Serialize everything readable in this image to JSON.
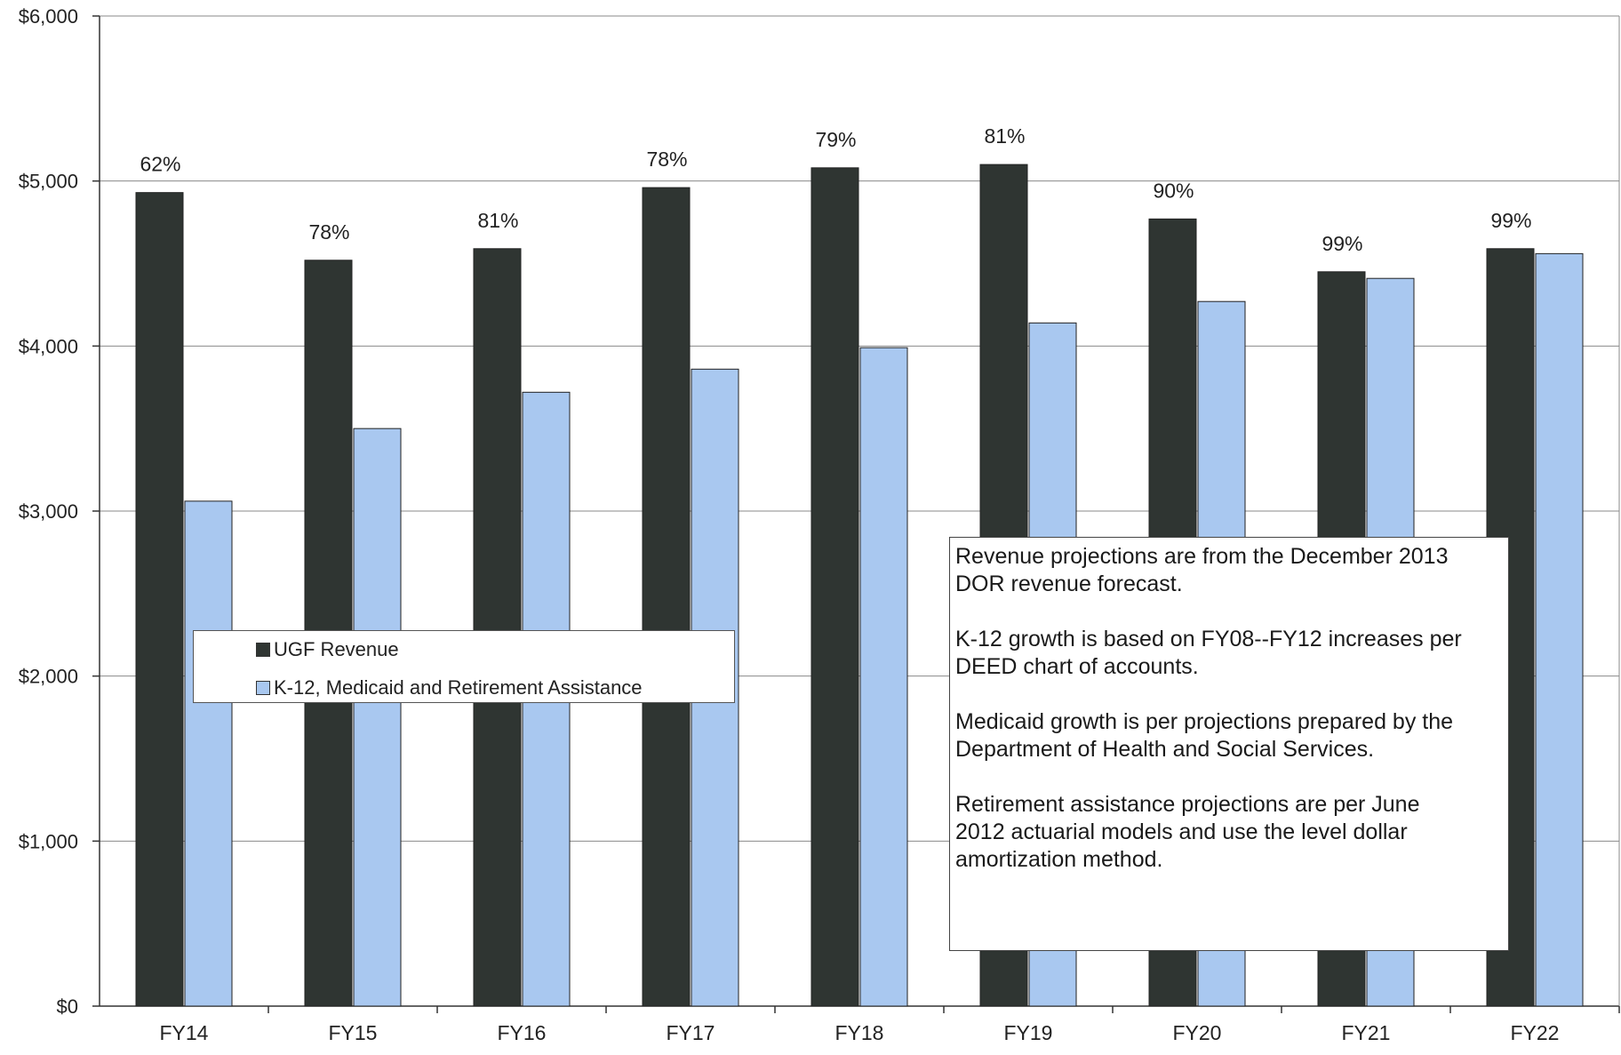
{
  "chart_data": {
    "type": "bar",
    "categories": [
      "FY14",
      "FY15",
      "FY16",
      "FY17",
      "FY18",
      "FY19",
      "FY20",
      "FY21",
      "FY22"
    ],
    "series": [
      {
        "name": "UGF Revenue",
        "color": "#2f3532",
        "values": [
          4930,
          4520,
          4590,
          4960,
          5080,
          5100,
          4770,
          4450,
          4590
        ]
      },
      {
        "name": "K-12, Medicaid and Retirement Assistance",
        "color": "#a9c8f0",
        "values": [
          3060,
          3500,
          3720,
          3860,
          3990,
          4140,
          4270,
          4410,
          4560
        ]
      }
    ],
    "data_labels": [
      "62%",
      "78%",
      "81%",
      "78%",
      "79%",
      "81%",
      "90%",
      "99%",
      "99%"
    ],
    "y_tick_labels": [
      "$0",
      "$1,000",
      "$2,000",
      "$3,000",
      "$4,000",
      "$5,000",
      "$6,000"
    ],
    "ylim": [
      0,
      6000
    ],
    "grid": true,
    "legend_placement": "middle-left",
    "title": "",
    "xlabel": "",
    "ylabel": ""
  },
  "notes": [
    "Revenue projections are from the December 2013\nDOR revenue forecast.",
    "K-12 growth is based on FY08--FY12 increases per\nDEED chart of accounts.",
    "Medicaid growth is per projections prepared by the\nDepartment of Health and Social Services.",
    "Retirement assistance projections are per June\n2012 actuarial models and use the level dollar\namortization method."
  ]
}
